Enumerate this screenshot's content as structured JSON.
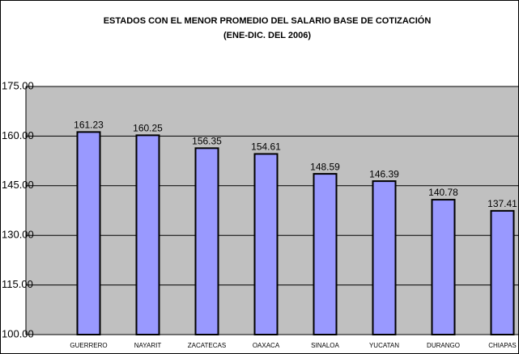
{
  "chart_data": {
    "type": "bar",
    "title": "ESTADOS CON EL MENOR PROMEDIO DEL SALARIO BASE DE COTIZACIÓN",
    "subtitle": "(ENE-DIC. DEL 2006)",
    "categories": [
      "GUERRERO",
      "NAYARIT",
      "ZACATECAS",
      "OAXACA",
      "SINALOA",
      "YUCATAN",
      "DURANGO",
      "CHIAPAS"
    ],
    "values": [
      161.23,
      160.25,
      156.35,
      154.61,
      148.59,
      146.39,
      140.78,
      137.41
    ],
    "color": "#9999ff",
    "ylim": [
      100,
      175
    ],
    "yticks": [
      {
        "value": 100,
        "label": "100.00"
      },
      {
        "value": 115,
        "label": "115.00"
      },
      {
        "value": 130,
        "label": "130.00"
      },
      {
        "value": 145,
        "label": "145.00"
      },
      {
        "value": 160,
        "label": "160.00"
      },
      {
        "value": 175,
        "label": "175.00"
      }
    ],
    "grid": true
  }
}
